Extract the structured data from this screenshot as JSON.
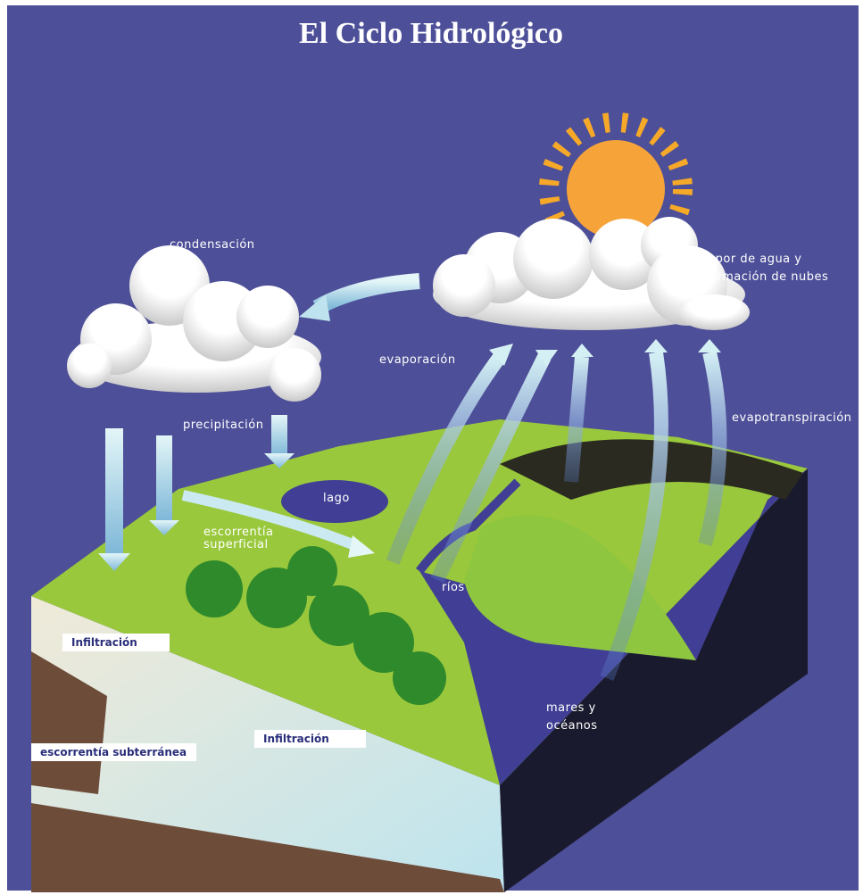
{
  "title": "El Ciclo Hidrológico",
  "labels": [
    "condensación",
    "vapor de agua  y",
    "formación de nubes",
    "evaporación",
    "evapotranspiración",
    "precipitación",
    "lago",
    "escorrentía",
    "superficial",
    "ríos",
    "mares y",
    "océanos"
  ],
  "boxes": [
    "Infiltración",
    "Infiltración",
    "escorrentía subterránea"
  ]
}
